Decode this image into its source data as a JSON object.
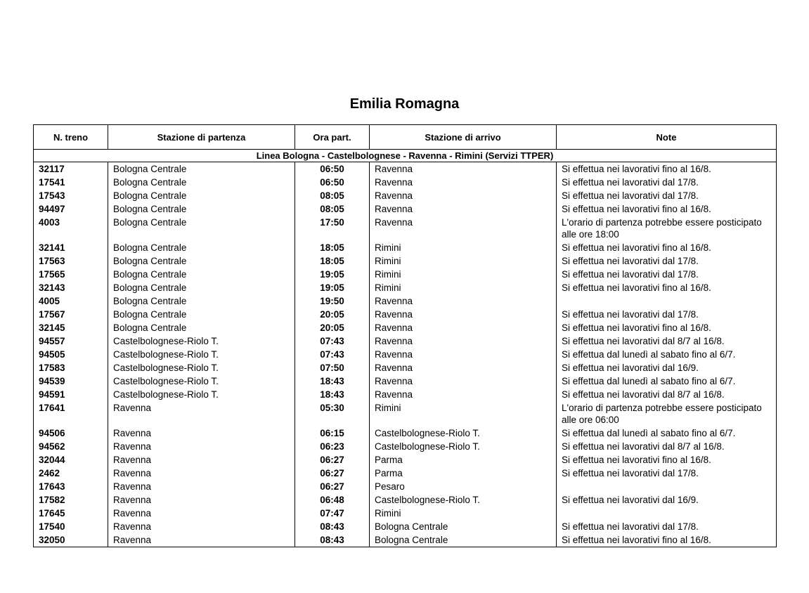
{
  "title": "Emilia Romagna",
  "columns": [
    "N. treno",
    "Stazione di partenza",
    "Ora part.",
    "Stazione di arrivo",
    "Note"
  ],
  "section": "Linea Bologna - Castelbolognese - Ravenna - Rimini (Servizi TTPER)",
  "rows": [
    {
      "id": "32117",
      "from": "Bologna Centrale",
      "time": "06:50",
      "to": "Ravenna",
      "note": "Si effettua nei lavorativi fino al 16/8."
    },
    {
      "id": "17541",
      "from": "Bologna Centrale",
      "time": "06:50",
      "to": "Ravenna",
      "note": "Si effettua nei lavorativi dal 17/8."
    },
    {
      "id": "17543",
      "from": "Bologna Centrale",
      "time": "08:05",
      "to": "Ravenna",
      "note": "Si effettua nei lavorativi dal 17/8."
    },
    {
      "id": "94497",
      "from": "Bologna Centrale",
      "time": "08:05",
      "to": "Ravenna",
      "note": "Si effettua nei lavorativi fino al 16/8."
    },
    {
      "id": "4003",
      "from": "Bologna Centrale",
      "time": "17:50",
      "to": "Ravenna",
      "note": "L'orario di partenza potrebbe essere posticipato alle ore 18:00"
    },
    {
      "id": "32141",
      "from": "Bologna Centrale",
      "time": "18:05",
      "to": "Rimini",
      "note": "Si effettua nei lavorativi fino al 16/8."
    },
    {
      "id": "17563",
      "from": "Bologna Centrale",
      "time": "18:05",
      "to": "Rimini",
      "note": "Si effettua nei lavorativi dal 17/8."
    },
    {
      "id": "17565",
      "from": "Bologna Centrale",
      "time": "19:05",
      "to": "Rimini",
      "note": "Si effettua nei lavorativi dal 17/8."
    },
    {
      "id": "32143",
      "from": "Bologna Centrale",
      "time": "19:05",
      "to": "Rimini",
      "note": "Si effettua nei lavorativi fino al 16/8."
    },
    {
      "id": "4005",
      "from": "Bologna Centrale",
      "time": "19:50",
      "to": "Ravenna",
      "note": ""
    },
    {
      "id": "17567",
      "from": "Bologna Centrale",
      "time": "20:05",
      "to": "Ravenna",
      "note": "Si effettua nei lavorativi dal 17/8."
    },
    {
      "id": "32145",
      "from": "Bologna Centrale",
      "time": "20:05",
      "to": "Ravenna",
      "note": "Si effettua nei lavorativi fino al 16/8."
    },
    {
      "id": "94557",
      "from": "Castelbolognese-Riolo T.",
      "time": "07:43",
      "to": "Ravenna",
      "note": "Si effettua nei lavorativi dal 8/7 al 16/8."
    },
    {
      "id": "94505",
      "from": "Castelbolognese-Riolo T.",
      "time": "07:43",
      "to": "Ravenna",
      "note": "Si effettua dal lunedì al sabato fino al 6/7."
    },
    {
      "id": "17583",
      "from": "Castelbolognese-Riolo T.",
      "time": "07:50",
      "to": "Ravenna",
      "note": "Si effettua nei lavorativi dal 16/9."
    },
    {
      "id": "94539",
      "from": "Castelbolognese-Riolo T.",
      "time": "18:43",
      "to": "Ravenna",
      "note": "Si effettua dal lunedì al sabato fino al 6/7."
    },
    {
      "id": "94591",
      "from": "Castelbolognese-Riolo T.",
      "time": "18:43",
      "to": "Ravenna",
      "note": "Si effettua nei lavorativi dal 8/7 al 16/8."
    },
    {
      "id": "17641",
      "from": "Ravenna",
      "time": "05:30",
      "to": "Rimini",
      "note": "L'orario di partenza potrebbe essere posticipato alle ore 06:00"
    },
    {
      "id": "94506",
      "from": "Ravenna",
      "time": "06:15",
      "to": "Castelbolognese-Riolo T.",
      "note": "Si effettua dal lunedì al sabato fino al 6/7."
    },
    {
      "id": "94562",
      "from": "Ravenna",
      "time": "06:23",
      "to": "Castelbolognese-Riolo T.",
      "note": "Si effettua nei lavorativi dal 8/7 al 16/8."
    },
    {
      "id": "32044",
      "from": "Ravenna",
      "time": "06:27",
      "to": "Parma",
      "note": "Si effettua nei lavorativi fino al 16/8."
    },
    {
      "id": "2462",
      "from": "Ravenna",
      "time": "06:27",
      "to": "Parma",
      "note": "Si effettua nei lavorativi dal 17/8."
    },
    {
      "id": "17643",
      "from": "Ravenna",
      "time": "06:27",
      "to": "Pesaro",
      "note": ""
    },
    {
      "id": "17582",
      "from": "Ravenna",
      "time": "06:48",
      "to": "Castelbolognese-Riolo T.",
      "note": "Si effettua nei lavorativi dal 16/9."
    },
    {
      "id": "17645",
      "from": "Ravenna",
      "time": "07:47",
      "to": "Rimini",
      "note": ""
    },
    {
      "id": "17540",
      "from": "Ravenna",
      "time": "08:43",
      "to": "Bologna Centrale",
      "note": "Si effettua nei lavorativi dal 17/8."
    },
    {
      "id": "32050",
      "from": "Ravenna",
      "time": "08:43",
      "to": "Bologna Centrale",
      "note": "Si effettua nei lavorativi fino al 16/8."
    }
  ]
}
